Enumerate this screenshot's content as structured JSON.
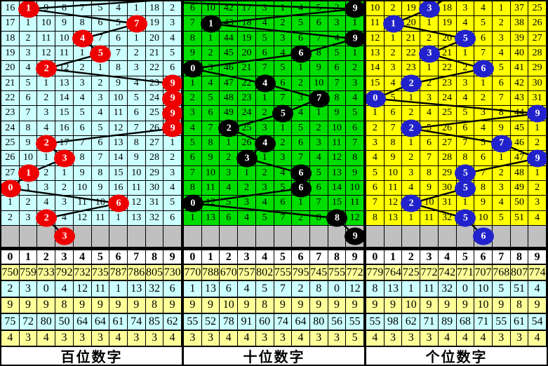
{
  "colors": {
    "hundreds_panel_bg": "#ccffff",
    "tens_panel_bg": "#00dd00",
    "units_panel_bg": "#ffff00",
    "red_ball": "#ee0000",
    "black_ball": "#000000",
    "blue_ball": "#2222cc",
    "separator_gray": "#c0c0c0",
    "stats_yellow": "#ffff99",
    "stats_cyan": "#ccffff",
    "grid_line": "#000000"
  },
  "chart_data": [
    {
      "type": "table",
      "title": "百位数字",
      "cell_bg": "#ccffff",
      "ball_color": "#ee0000",
      "column_headers": [
        "0",
        "1",
        "2",
        "3",
        "4",
        "5",
        "6",
        "7",
        "8",
        "9"
      ],
      "rows": [
        [
          16,
          1,
          9,
          8,
          7,
          5,
          4,
          1,
          18,
          2
        ],
        [
          17,
          1,
          10,
          9,
          8,
          6,
          5,
          7,
          19,
          3
        ],
        [
          18,
          2,
          11,
          10,
          4,
          7,
          6,
          1,
          20,
          4
        ],
        [
          19,
          3,
          12,
          11,
          1,
          5,
          7,
          2,
          21,
          5
        ],
        [
          20,
          4,
          2,
          12,
          2,
          1,
          8,
          3,
          22,
          6
        ],
        [
          21,
          5,
          1,
          13,
          3,
          2,
          9,
          4,
          23,
          9
        ],
        [
          22,
          6,
          2,
          14,
          4,
          3,
          10,
          5,
          24,
          9
        ],
        [
          23,
          7,
          3,
          15,
          5,
          4,
          11,
          6,
          25,
          9
        ],
        [
          24,
          8,
          4,
          16,
          6,
          5,
          12,
          7,
          26,
          9
        ],
        [
          25,
          9,
          2,
          17,
          7,
          6,
          13,
          8,
          27,
          1
        ],
        [
          26,
          10,
          1,
          3,
          8,
          7,
          14,
          9,
          28,
          2
        ],
        [
          27,
          1,
          2,
          1,
          9,
          8,
          15,
          10,
          29,
          3
        ],
        [
          0,
          1,
          3,
          2,
          10,
          9,
          16,
          11,
          30,
          4
        ],
        [
          1,
          2,
          4,
          3,
          11,
          10,
          6,
          12,
          31,
          5
        ],
        [
          2,
          3,
          2,
          4,
          12,
          11,
          1,
          13,
          32,
          6
        ]
      ],
      "ball_cols": [
        1,
        7,
        4,
        5,
        2,
        9,
        9,
        9,
        9,
        2,
        3,
        1,
        0,
        6,
        2
      ],
      "next_ball": {
        "column": 3,
        "value": 3
      },
      "entry_point": [
        257,
        -4
      ],
      "stats": [
        [
          750,
          759,
          733,
          792,
          732,
          735,
          787,
          786,
          805,
          730
        ],
        [
          2,
          3,
          0,
          4,
          12,
          11,
          1,
          13,
          32,
          6
        ],
        [
          9,
          9,
          9,
          8,
          9,
          9,
          9,
          9,
          8,
          9
        ],
        [
          75,
          72,
          80,
          50,
          64,
          64,
          61,
          74,
          85,
          62
        ],
        [
          4,
          3,
          4,
          3,
          3,
          3,
          4,
          3,
          3,
          4
        ]
      ]
    },
    {
      "type": "table",
      "title": "十位数字",
      "cell_bg": "#00dd00",
      "ball_color": "#000000",
      "column_headers": [
        "0",
        "1",
        "2",
        "3",
        "4",
        "5",
        "6",
        "7",
        "8",
        "9"
      ],
      "rows": [
        [
          6,
          10,
          42,
          17,
          3,
          1,
          4,
          5,
          2,
          9
        ],
        [
          7,
          1,
          43,
          18,
          4,
          2,
          5,
          6,
          3,
          1
        ],
        [
          8,
          1,
          44,
          19,
          5,
          3,
          6,
          7,
          4,
          9
        ],
        [
          9,
          2,
          45,
          20,
          6,
          4,
          6,
          8,
          5,
          1
        ],
        [
          0,
          3,
          46,
          21,
          7,
          5,
          1,
          9,
          6,
          2
        ],
        [
          1,
          4,
          47,
          22,
          4,
          6,
          2,
          10,
          7,
          3
        ],
        [
          2,
          5,
          48,
          23,
          1,
          7,
          3,
          7,
          8,
          4
        ],
        [
          3,
          6,
          49,
          24,
          2,
          5,
          4,
          1,
          9,
          5
        ],
        [
          4,
          7,
          2,
          25,
          3,
          1,
          5,
          2,
          10,
          6
        ],
        [
          5,
          8,
          1,
          26,
          4,
          2,
          6,
          3,
          11,
          7
        ],
        [
          6,
          9,
          2,
          3,
          1,
          3,
          7,
          4,
          12,
          8
        ],
        [
          7,
          10,
          3,
          1,
          2,
          4,
          6,
          5,
          13,
          9
        ],
        [
          8,
          11,
          4,
          2,
          3,
          5,
          6,
          6,
          14,
          10
        ],
        [
          0,
          12,
          5,
          3,
          4,
          6,
          1,
          7,
          15,
          11
        ],
        [
          1,
          13,
          6,
          4,
          5,
          7,
          2,
          8,
          8,
          12
        ]
      ],
      "ball_cols": [
        9,
        1,
        9,
        6,
        0,
        4,
        7,
        5,
        2,
        4,
        3,
        6,
        6,
        0,
        8
      ],
      "next_ball": {
        "column": 9,
        "value": 9
      },
      "entry_point": [
        -3,
        2
      ],
      "stats": [
        [
          770,
          788,
          670,
          757,
          802,
          755,
          795,
          745,
          755,
          772
        ],
        [
          1,
          13,
          6,
          4,
          5,
          7,
          2,
          8,
          0,
          12
        ],
        [
          9,
          9,
          10,
          9,
          8,
          9,
          9,
          9,
          9,
          9
        ],
        [
          55,
          52,
          78,
          91,
          60,
          74,
          64,
          80,
          56,
          55
        ],
        [
          3,
          3,
          4,
          4,
          3,
          3,
          4,
          3,
          3,
          5
        ]
      ]
    },
    {
      "type": "table",
      "title": "个位数字",
      "cell_bg": "#ffff00",
      "ball_color": "#2222cc",
      "column_headers": [
        "0",
        "1",
        "2",
        "3",
        "4",
        "5",
        "6",
        "7",
        "8",
        "9"
      ],
      "rows": [
        [
          10,
          2,
          19,
          3,
          18,
          3,
          4,
          1,
          37,
          25
        ],
        [
          11,
          1,
          20,
          1,
          19,
          4,
          5,
          2,
          38,
          26
        ],
        [
          12,
          1,
          21,
          2,
          20,
          5,
          6,
          3,
          39,
          27
        ],
        [
          13,
          2,
          22,
          3,
          21,
          1,
          7,
          4,
          40,
          28
        ],
        [
          14,
          3,
          23,
          1,
          22,
          2,
          6,
          5,
          41,
          29
        ],
        [
          15,
          4,
          2,
          2,
          23,
          3,
          1,
          6,
          42,
          30
        ],
        [
          0,
          5,
          1,
          3,
          24,
          4,
          2,
          7,
          43,
          31
        ],
        [
          1,
          6,
          2,
          4,
          25,
          5,
          3,
          8,
          44,
          9
        ],
        [
          2,
          7,
          2,
          5,
          26,
          6,
          4,
          9,
          45,
          1
        ],
        [
          3,
          8,
          1,
          6,
          27,
          7,
          5,
          7,
          46,
          2
        ],
        [
          4,
          9,
          2,
          7,
          28,
          8,
          6,
          1,
          47,
          9
        ],
        [
          5,
          10,
          3,
          8,
          29,
          5,
          7,
          2,
          48,
          1
        ],
        [
          6,
          11,
          4,
          9,
          30,
          5,
          8,
          3,
          49,
          2
        ],
        [
          7,
          12,
          2,
          10,
          31,
          1,
          9,
          4,
          50,
          3
        ],
        [
          8,
          13,
          1,
          11,
          32,
          5,
          10,
          5,
          51,
          4
        ]
      ],
      "ball_cols": [
        3,
        1,
        5,
        3,
        6,
        2,
        0,
        9,
        2,
        7,
        9,
        5,
        5,
        2,
        5
      ],
      "next_ball": {
        "column": 6,
        "value": 6
      },
      "entry_point": [
        116,
        -6
      ],
      "stats": [
        [
          779,
          764,
          725,
          772,
          742,
          771,
          707,
          768,
          807,
          774
        ],
        [
          8,
          13,
          1,
          11,
          32,
          0,
          10,
          5,
          51,
          4
        ],
        [
          9,
          9,
          10,
          9,
          9,
          9,
          10,
          9,
          8,
          9
        ],
        [
          55,
          98,
          62,
          71,
          89,
          68,
          71,
          55,
          61,
          54
        ],
        [
          4,
          3,
          3,
          3,
          4,
          4,
          4,
          3,
          3,
          4
        ]
      ]
    }
  ]
}
